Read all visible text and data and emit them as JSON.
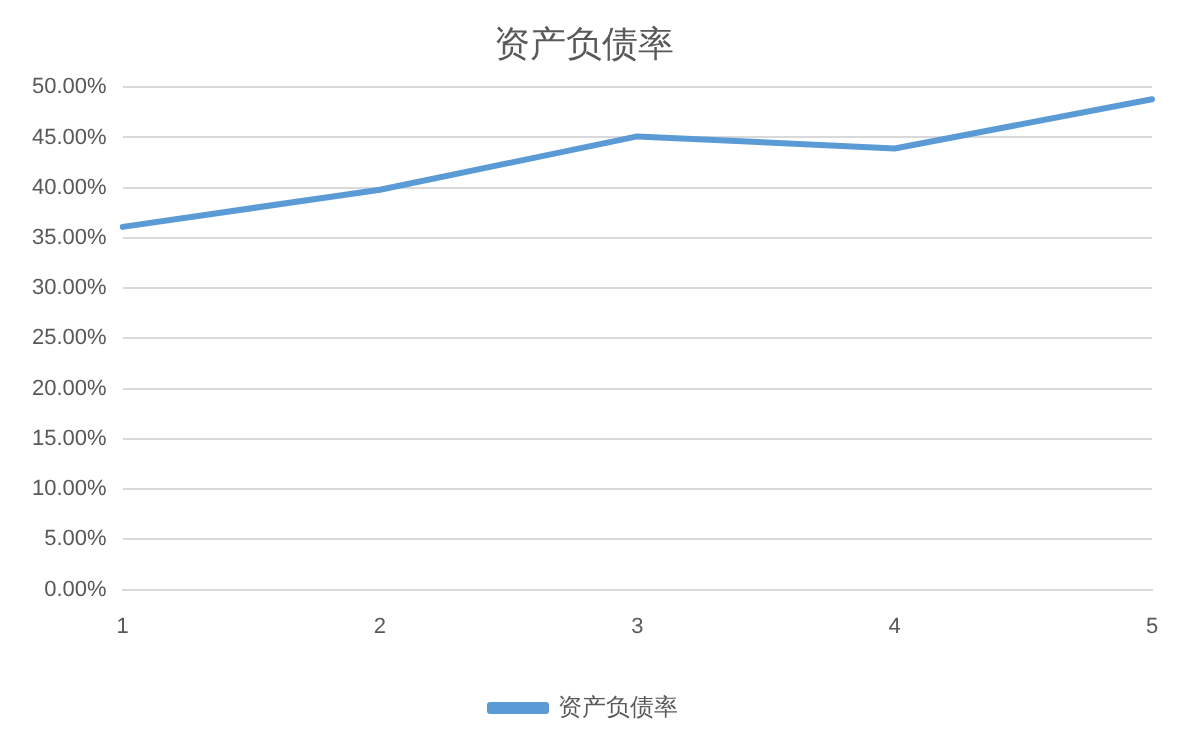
{
  "chart_data": {
    "type": "line",
    "title": "资产负债率",
    "categories": [
      "1",
      "2",
      "3",
      "4",
      "5"
    ],
    "series": [
      {
        "name": "资产负债率",
        "color": "#5b9bd5",
        "values": [
          36.1,
          39.8,
          45.1,
          43.9,
          48.8
        ]
      }
    ],
    "ylim": [
      0,
      50
    ],
    "yticks": [
      {
        "value": 0,
        "label": "0.00%"
      },
      {
        "value": 5,
        "label": "5.00%"
      },
      {
        "value": 10,
        "label": "10.00%"
      },
      {
        "value": 15,
        "label": "15.00%"
      },
      {
        "value": 20,
        "label": "20.00%"
      },
      {
        "value": 25,
        "label": "25.00%"
      },
      {
        "value": 30,
        "label": "30.00%"
      },
      {
        "value": 35,
        "label": "35.00%"
      },
      {
        "value": 40,
        "label": "40.00%"
      },
      {
        "value": 45,
        "label": "45.00%"
      },
      {
        "value": 50,
        "label": "50.00%"
      }
    ],
    "grid": "y",
    "legend": "bottom",
    "marker": "none",
    "line_style": "solid"
  }
}
